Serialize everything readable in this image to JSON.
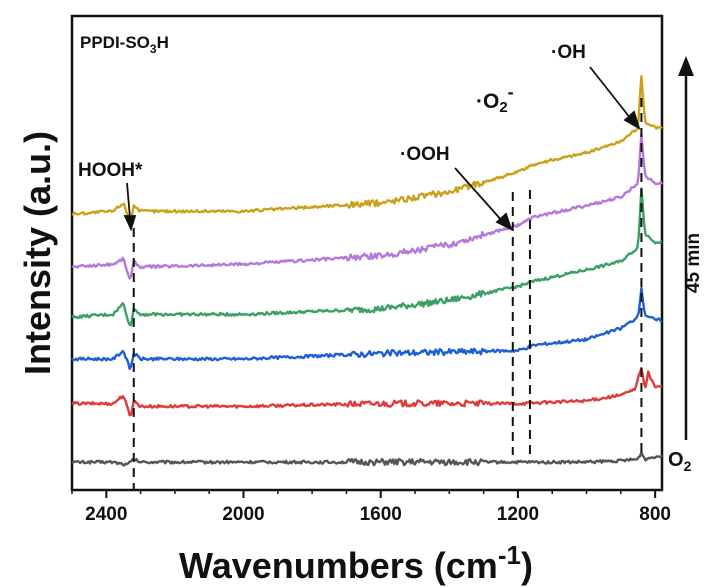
{
  "chart_data": {
    "type": "line",
    "title": "PPDI-SO3H",
    "title_parts": {
      "main": "PPDI-SO",
      "sub": "3",
      "tail": "H"
    },
    "xlabel": "Wavenumbers (cm",
    "xlabel_sup": "-1",
    "xlabel_close": ")",
    "ylabel": "Intensity (a.u.)",
    "x_reversed": true,
    "xlim": [
      2500,
      780
    ],
    "ylim": [
      -1,
      16
    ],
    "x_ticks": [
      2400,
      2000,
      1600,
      1200,
      800
    ],
    "grid": false,
    "legend": "none",
    "time_label": "45 min",
    "bottom_label": {
      "main": "O",
      "sub": "2"
    },
    "annotations": [
      {
        "text": "HOOH*",
        "x": 2320
      },
      {
        "text": "·OOH",
        "x": 1215
      },
      {
        "text": "·O2-",
        "x": 1165
      },
      {
        "text": "·OH",
        "x": 840
      }
    ],
    "marker_lines_x": [
      2320,
      1215,
      1165,
      840
    ],
    "series": [
      {
        "color": "#555555",
        "x": [
          2500,
          2380,
          2340,
          2320,
          2300,
          2000,
          1600,
          1200,
          1000,
          900,
          850,
          840,
          830,
          800
        ],
        "y": [
          0,
          0,
          -0.1,
          0.1,
          0,
          0,
          0,
          0,
          0,
          0.05,
          0.1,
          0.35,
          0.1,
          0.2
        ]
      },
      {
        "color": "#e03b3b",
        "x": [
          2500,
          2380,
          2350,
          2330,
          2320,
          2300,
          2000,
          1600,
          1200,
          1000,
          900,
          860,
          840,
          830,
          820,
          800
        ],
        "y": [
          2.1,
          2.1,
          2.4,
          1.6,
          2.2,
          2.0,
          2.0,
          2.1,
          2.1,
          2.2,
          2.4,
          2.6,
          3.4,
          2.6,
          3.2,
          2.7
        ]
      },
      {
        "color": "#1f5fd6",
        "x": [
          2500,
          2380,
          2350,
          2330,
          2320,
          2300,
          2000,
          1600,
          1200,
          1150,
          1000,
          900,
          850,
          840,
          830,
          800
        ],
        "y": [
          3.7,
          3.7,
          4.0,
          3.3,
          3.9,
          3.7,
          3.7,
          3.9,
          4.0,
          4.2,
          4.4,
          4.8,
          5.2,
          6.2,
          5.3,
          5.1
        ]
      },
      {
        "color": "#3aa064",
        "x": [
          2500,
          2380,
          2350,
          2330,
          2320,
          2300,
          2000,
          1600,
          1400,
          1200,
          1150,
          1000,
          900,
          850,
          840,
          830,
          800
        ],
        "y": [
          5.2,
          5.3,
          5.7,
          4.8,
          5.5,
          5.3,
          5.3,
          5.5,
          5.8,
          6.3,
          6.5,
          6.9,
          7.2,
          7.7,
          9.8,
          8.2,
          7.9
        ]
      },
      {
        "color": "#b479d8",
        "x": [
          2500,
          2380,
          2350,
          2330,
          2320,
          2300,
          2000,
          1600,
          1400,
          1200,
          1150,
          1000,
          900,
          850,
          840,
          830,
          800
        ],
        "y": [
          7.0,
          7.1,
          7.3,
          6.5,
          7.2,
          7.0,
          7.1,
          7.4,
          7.8,
          8.5,
          8.8,
          9.2,
          9.5,
          10.0,
          11.8,
          10.3,
          10.0
        ]
      },
      {
        "color": "#c9a21a",
        "x": [
          2500,
          2380,
          2350,
          2330,
          2320,
          2300,
          2000,
          1600,
          1400,
          1200,
          1150,
          1000,
          900,
          850,
          840,
          830,
          800
        ],
        "y": [
          8.9,
          9.0,
          9.3,
          8.6,
          9.2,
          9.0,
          9.0,
          9.3,
          9.7,
          10.4,
          10.7,
          11.1,
          11.5,
          12.0,
          13.8,
          12.2,
          12.0
        ]
      }
    ]
  }
}
